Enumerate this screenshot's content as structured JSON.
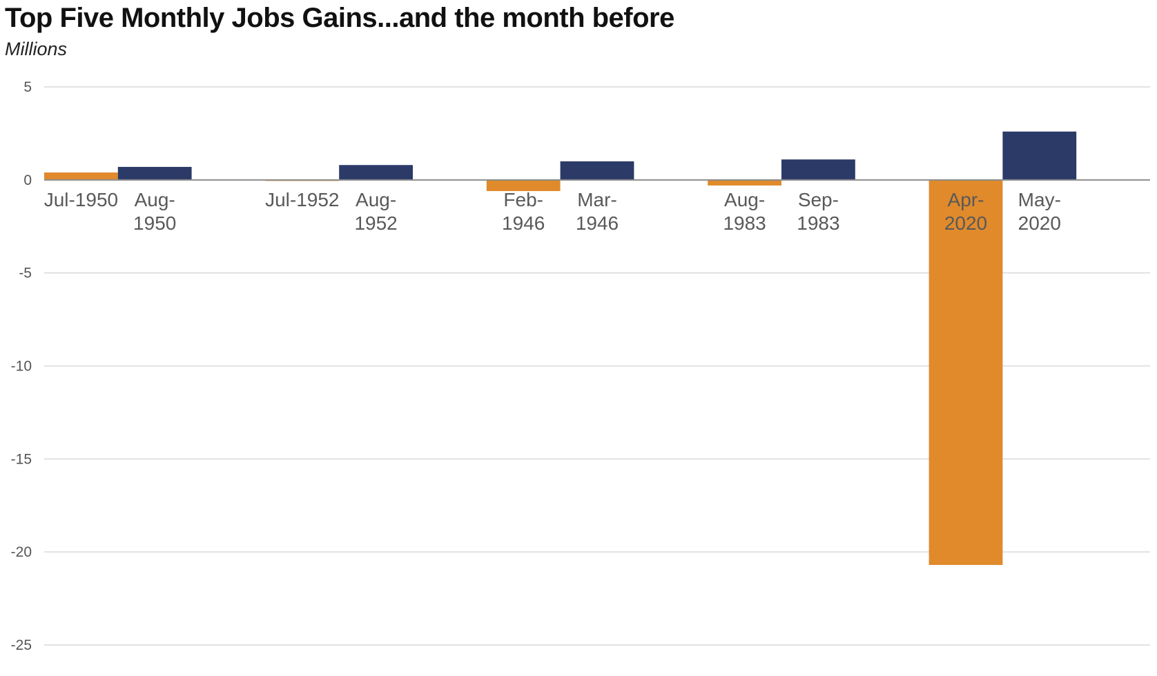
{
  "chart_data": {
    "type": "bar",
    "title": "Top Five Monthly Jobs Gains...and the month before",
    "subtitle": "Millions",
    "xlabel": "",
    "ylabel": "",
    "ylim": [
      -25,
      5
    ],
    "yticks": [
      5,
      0,
      -5,
      -10,
      -15,
      -20,
      -25
    ],
    "ytick_labels": [
      "5",
      "0",
      "-5",
      "-10",
      "-15",
      "-20",
      "-25"
    ],
    "grid": true,
    "legend": "none",
    "colors": {
      "month_before": "#E08A2C",
      "top_gain": "#2B3A67",
      "gridline": "#D9D9D9",
      "baseline": "#8C8C8C"
    },
    "categories": [
      {
        "label": [
          "Jul-1950"
        ],
        "value": 0.4,
        "kind": "month_before"
      },
      {
        "label": [
          "Aug-",
          "1950"
        ],
        "value": 0.7,
        "kind": "top_gain"
      },
      {
        "label": [
          "Jul-1952"
        ],
        "value": -0.05,
        "kind": "month_before"
      },
      {
        "label": [
          "Aug-",
          "1952"
        ],
        "value": 0.8,
        "kind": "top_gain"
      },
      {
        "label": [
          "Feb-",
          "1946"
        ],
        "value": -0.6,
        "kind": "month_before"
      },
      {
        "label": [
          "Mar-",
          "1946"
        ],
        "value": 1.0,
        "kind": "top_gain"
      },
      {
        "label": [
          "Aug-",
          "1983"
        ],
        "value": -0.3,
        "kind": "month_before"
      },
      {
        "label": [
          "Sep-",
          "1983"
        ],
        "value": 1.1,
        "kind": "top_gain"
      },
      {
        "label": [
          "Apr-",
          "2020"
        ],
        "value": -20.7,
        "kind": "month_before"
      },
      {
        "label": [
          "May-",
          "2020"
        ],
        "value": 2.6,
        "kind": "top_gain"
      }
    ]
  }
}
